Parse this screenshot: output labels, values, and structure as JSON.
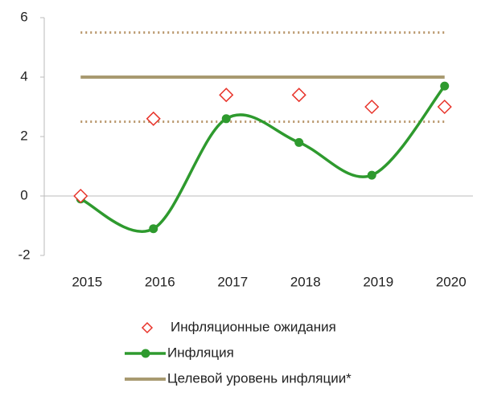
{
  "chart_data": {
    "type": "line",
    "categories": [
      "2015",
      "2016",
      "2017",
      "2018",
      "2019",
      "2020"
    ],
    "series": [
      {
        "name": "Инфляционные ожидания",
        "kind": "scatter",
        "color": "#e8332a",
        "values": [
          0,
          2.6,
          3.4,
          3.4,
          3.0,
          3.0
        ]
      },
      {
        "name": "Инфляция",
        "kind": "smooth",
        "color": "#2e9a2e",
        "values": [
          -0.1,
          -1.1,
          2.6,
          1.8,
          0.7,
          3.7
        ]
      },
      {
        "name": "Целевой уровень инфляции*",
        "kind": "line",
        "color": "#a89a70",
        "values": [
          4,
          4,
          4,
          4,
          4,
          4
        ]
      },
      {
        "kind": "dotted",
        "color": "#b8966a",
        "values": [
          5.5,
          5.5,
          5.5,
          5.5,
          5.5,
          5.5
        ]
      },
      {
        "kind": "dotted",
        "color": "#b8966a",
        "values": [
          2.5,
          2.5,
          2.5,
          2.5,
          2.5,
          2.5
        ]
      }
    ],
    "ylim": [
      -2,
      6
    ],
    "yticks": [
      -2,
      0,
      2,
      4,
      6
    ]
  }
}
